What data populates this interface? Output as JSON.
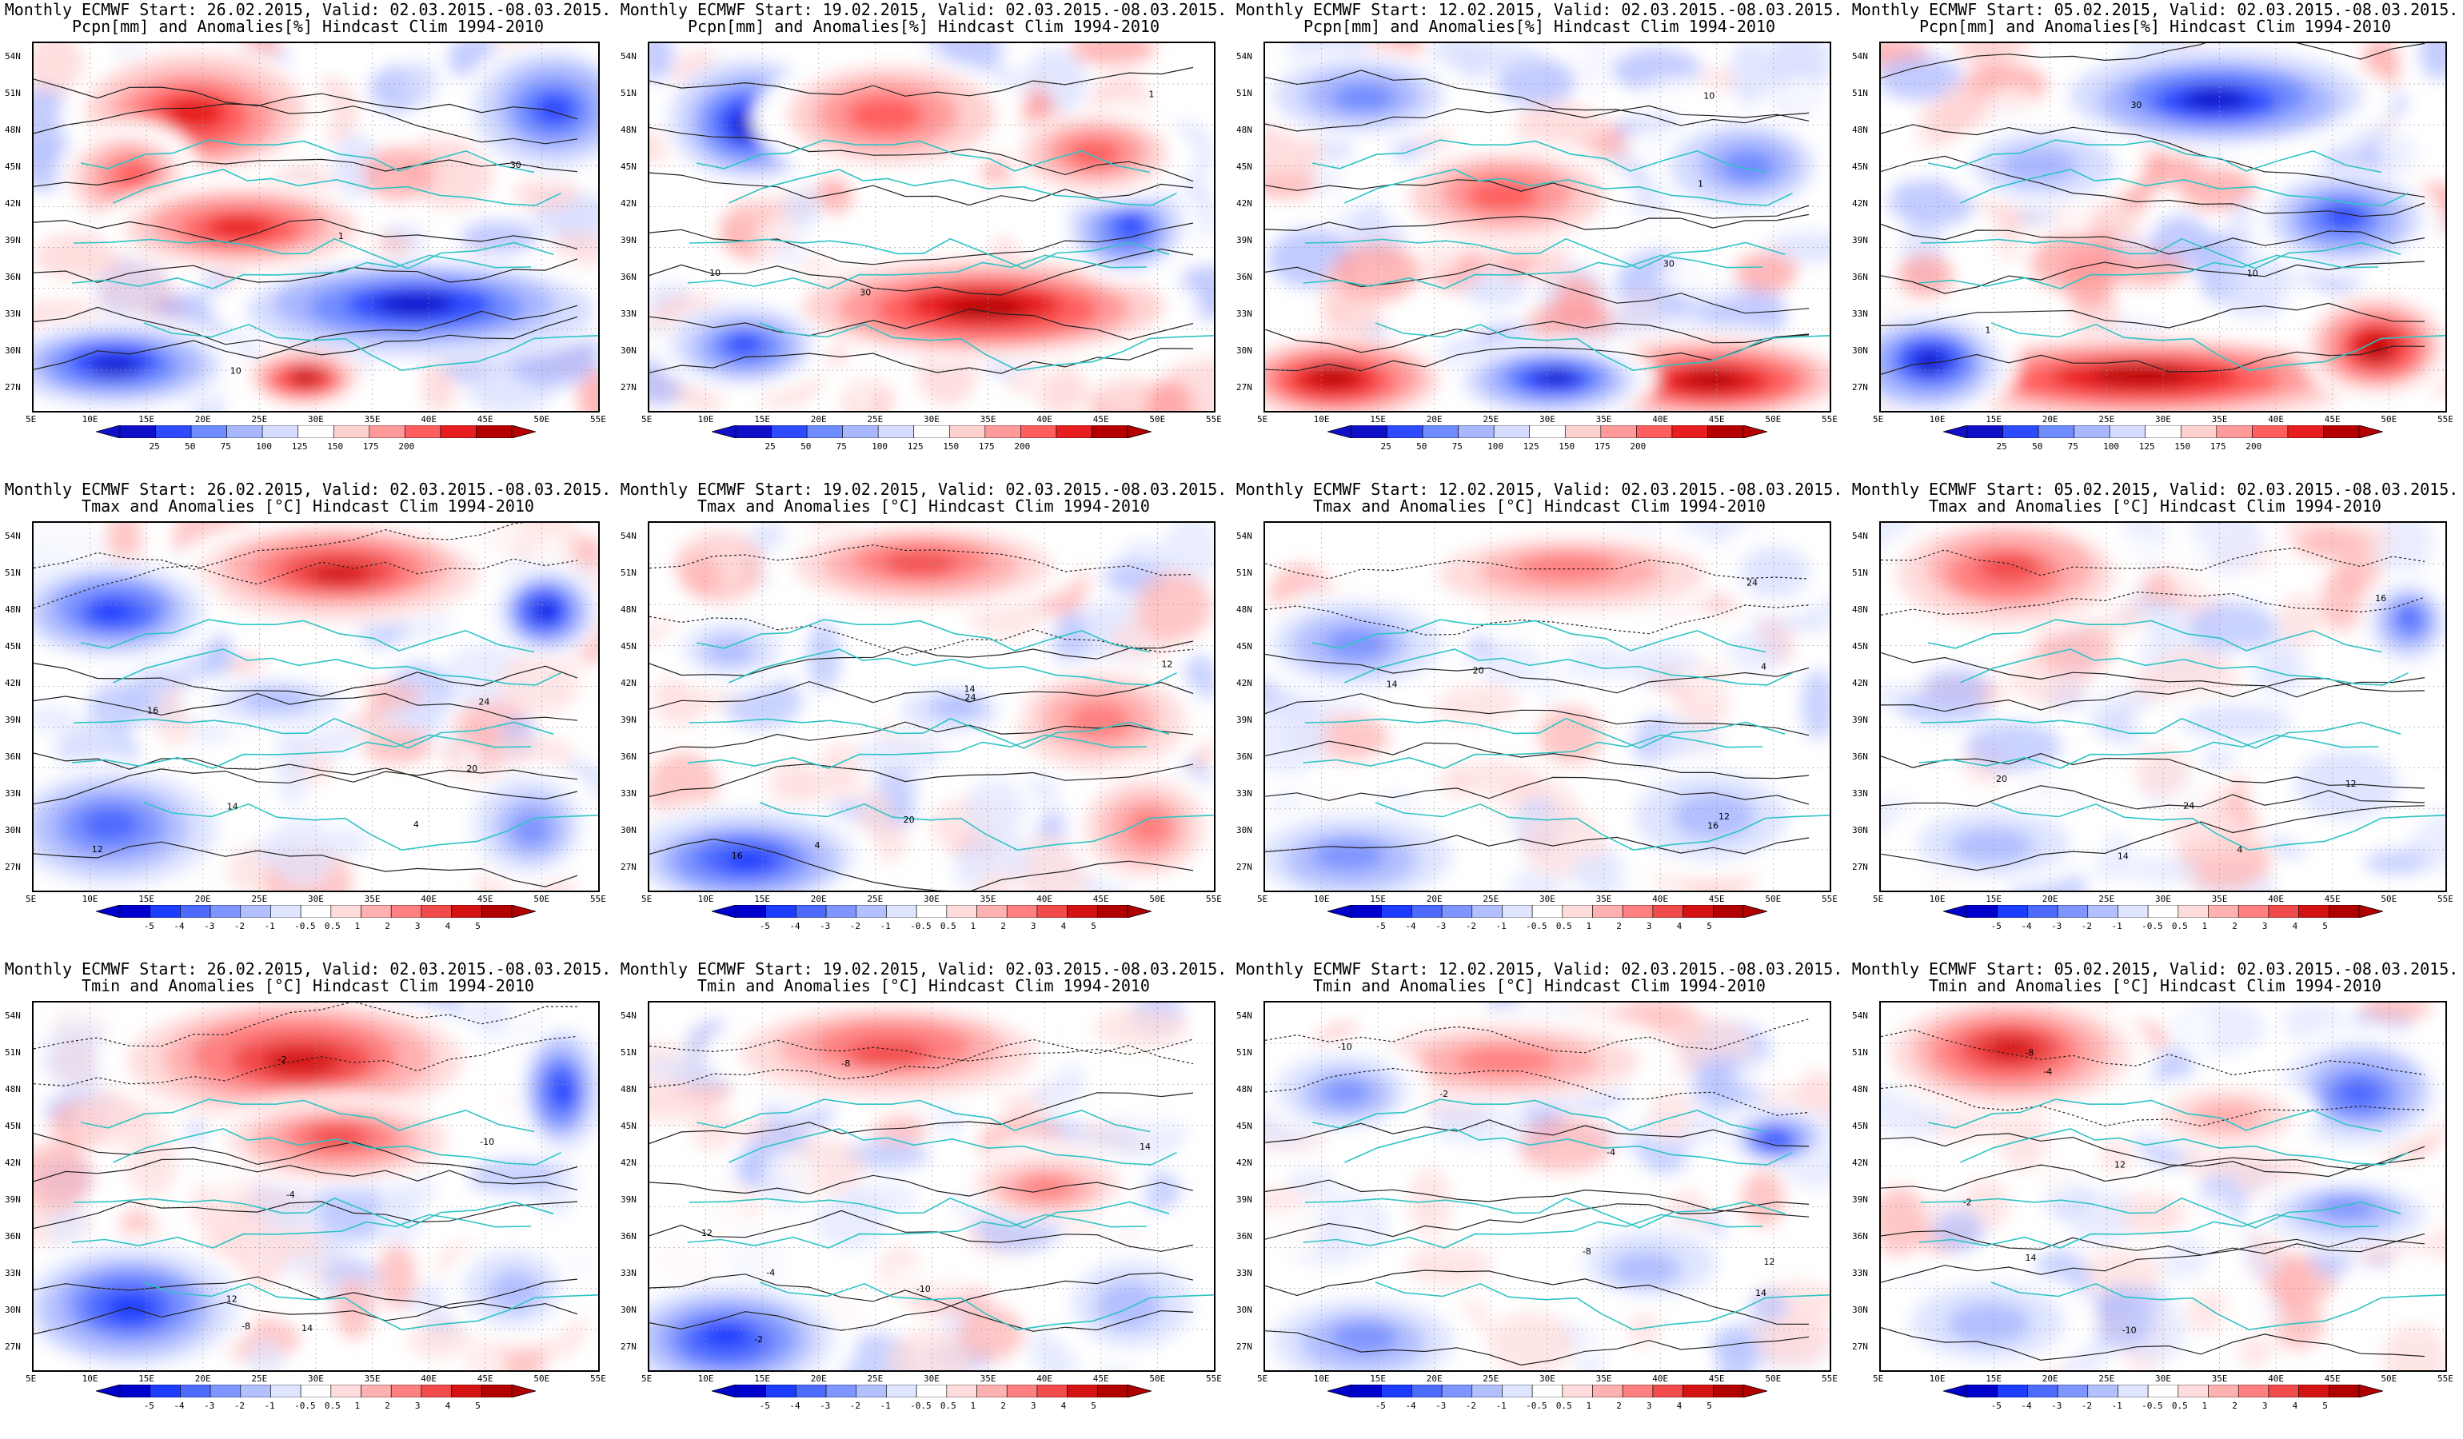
{
  "rows": [
    {
      "id": "pcpn",
      "title2": "Pcpn[mm] and Anomalies[%] Hindcast Clim 1994-2010",
      "colorbar_labels": [
        "25",
        "50",
        "75",
        "100",
        "125",
        "150",
        "175",
        "200"
      ],
      "contour_labels": [
        "10",
        "30",
        "1"
      ]
    },
    {
      "id": "tmax",
      "title2": "Tmax and Anomalies [°C] Hindcast Clim 1994-2010",
      "colorbar_labels": [
        "-5",
        "-4",
        "-3",
        "-2",
        "-1",
        "-0.5",
        "0.5",
        "1",
        "2",
        "3",
        "4",
        "5"
      ],
      "contour_labels": [
        "4",
        "12",
        "14",
        "16",
        "20",
        "24"
      ]
    },
    {
      "id": "tmin",
      "title2": "Tmin and Anomalies [°C] Hindcast Clim 1994-2010",
      "colorbar_labels": [
        "-5",
        "-4",
        "-3",
        "-2",
        "-1",
        "-0.5",
        "0.5",
        "1",
        "2",
        "3",
        "4",
        "5"
      ],
      "contour_labels": [
        "-2",
        "-4",
        "-8",
        "-10",
        "12",
        "14"
      ]
    }
  ],
  "columns": [
    {
      "start": "26.02.2015"
    },
    {
      "start": "19.02.2015"
    },
    {
      "start": "12.02.2015"
    },
    {
      "start": "05.02.2015"
    }
  ],
  "title_prefix": "Monthly ECMWF Start: ",
  "valid_text": ", Valid: 02.03.2015.-08.03.2015.",
  "lat_labels": [
    "54N",
    "51N",
    "48N",
    "45N",
    "42N",
    "39N",
    "36N",
    "33N",
    "30N",
    "27N"
  ],
  "lon_labels": [
    "5E",
    "10E",
    "15E",
    "20E",
    "25E",
    "30E",
    "35E",
    "40E",
    "45E",
    "50E",
    "55E"
  ],
  "colors": {
    "dry": "#1a1aff",
    "wet": "#c80000",
    "coast": "#2ec4c4",
    "contour": "#222222"
  }
}
